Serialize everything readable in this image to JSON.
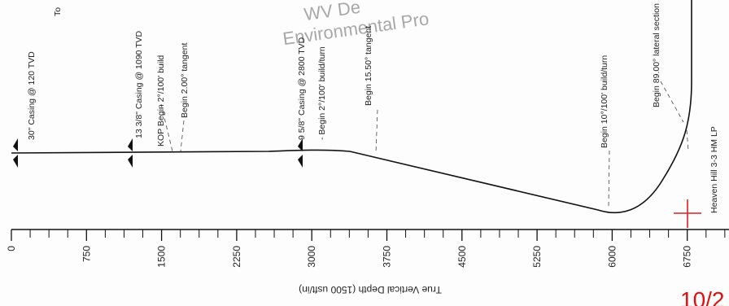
{
  "top_fragment": "To",
  "watermark": [
    "WV De",
    "Environmental Pro"
  ],
  "annotations": [
    "30\" Casing @ 120 TVD",
    "13 3/8\" Casing @ 1090 TVD",
    "KOP Begin 2°/100' build",
    "Begin 2.00° tangent",
    "9 5/8\" Casing @ 2800 TVD",
    "- Begin 2°/100' build/turn",
    "Begin 15.50° tangent",
    "Begin 10°/100' build/turn",
    "Begin 89.00° lateral section",
    "Heaven Hill 3-3 HM LP"
  ],
  "axis": {
    "title": "True Vertical Depth (1500 usft/in)",
    "ticks": [
      "0",
      "750",
      "1500",
      "2250",
      "3000",
      "3750",
      "4500",
      "5250",
      "6000",
      "6750"
    ]
  },
  "stamp": "10/2"
}
